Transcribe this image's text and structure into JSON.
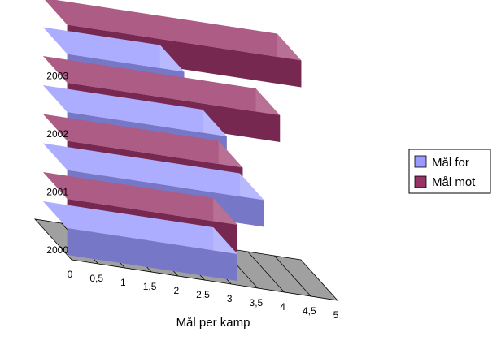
{
  "chart_data": {
    "type": "bar",
    "orientation": "horizontal",
    "style": "3d",
    "categories": [
      "2000",
      "2001",
      "2002",
      "2003"
    ],
    "series": [
      {
        "name": "Mål for",
        "values": [
          3.2,
          3.7,
          3.0,
          2.2
        ]
      },
      {
        "name": "Mål mot",
        "values": [
          3.2,
          3.3,
          4.0,
          4.4
        ]
      }
    ],
    "xlabel": "Mål per kamp",
    "ylabel": "",
    "xlim": [
      0,
      5
    ],
    "x_ticks": [
      "0",
      "0,5",
      "1",
      "1,5",
      "2",
      "2,5",
      "3",
      "3,5",
      "4",
      "4,5",
      "5"
    ],
    "grid": true,
    "legend_position": "right"
  },
  "colors": {
    "mal_for": "#9999ff",
    "mal_mot": "#993366",
    "floor": "#a0a0a0"
  }
}
